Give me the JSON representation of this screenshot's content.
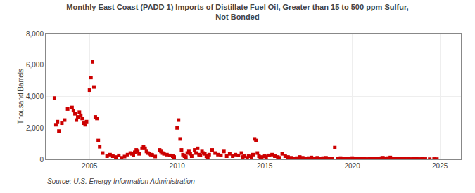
{
  "chart_data": {
    "type": "scatter",
    "title": "Monthly East Coast (PADD 1) Imports of Distillate Fuel Oil, Greater than 15 to 500 ppm Sulfur,\nNot Bonded",
    "ylabel": "Thousand Barrels",
    "annotations": [
      "Source: U.S. Energy Information Administration"
    ],
    "color": "#cc0000",
    "marker": "square",
    "grid": true,
    "xlim": [
      2002.5,
      2026.2
    ],
    "xticks": [
      2005,
      2010,
      2015,
      2020,
      2025
    ],
    "ylim": [
      0,
      8000
    ],
    "yticks": [
      0,
      {
        "value": 2000,
        "label": "2,000"
      },
      {
        "value": 4000,
        "label": "4,000"
      },
      {
        "value": 6000,
        "label": "6,000"
      },
      {
        "value": 8000,
        "label": "8,000"
      }
    ],
    "x": [
      2003.0,
      2003.08,
      2003.17,
      2003.25,
      2003.42,
      2003.58,
      2003.75,
      2004.0,
      2004.08,
      2004.17,
      2004.25,
      2004.33,
      2004.42,
      2004.5,
      2004.58,
      2004.67,
      2004.75,
      2004.83,
      2005.0,
      2005.08,
      2005.17,
      2005.25,
      2005.33,
      2005.42,
      2005.5,
      2005.58,
      2005.75,
      2006.0,
      2006.17,
      2006.33,
      2006.5,
      2006.67,
      2006.83,
      2007.0,
      2007.17,
      2007.33,
      2007.42,
      2007.5,
      2007.58,
      2007.67,
      2007.75,
      2007.83,
      2008.0,
      2008.08,
      2008.17,
      2008.25,
      2008.33,
      2008.42,
      2008.5,
      2008.58,
      2008.75,
      2009.0,
      2009.08,
      2009.17,
      2009.25,
      2009.42,
      2009.58,
      2009.75,
      2009.83,
      2010.0,
      2010.08,
      2010.17,
      2010.25,
      2010.33,
      2010.42,
      2010.5,
      2010.58,
      2010.67,
      2010.75,
      2010.83,
      2011.0,
      2011.08,
      2011.17,
      2011.25,
      2011.33,
      2011.42,
      2011.5,
      2011.58,
      2011.67,
      2011.75,
      2011.83,
      2012.0,
      2012.17,
      2012.33,
      2012.5,
      2012.67,
      2012.83,
      2013.0,
      2013.17,
      2013.33,
      2013.5,
      2013.67,
      2013.75,
      2013.83,
      2014.0,
      2014.08,
      2014.25,
      2014.33,
      2014.42,
      2014.5,
      2014.58,
      2014.67,
      2014.75,
      2014.83,
      2015.0,
      2015.08,
      2015.25,
      2015.42,
      2015.58,
      2015.75,
      2015.83,
      2016.0,
      2016.17,
      2016.33,
      2016.5,
      2016.67,
      2016.83,
      2017.0,
      2017.17,
      2017.33,
      2017.5,
      2017.67,
      2017.83,
      2018.0,
      2018.17,
      2018.33,
      2018.5,
      2018.67,
      2018.83,
      2019.0,
      2019.17,
      2019.33,
      2019.5,
      2019.67,
      2019.83,
      2020.0,
      2020.17,
      2020.33,
      2020.5,
      2020.67,
      2020.83,
      2021.0,
      2021.17,
      2021.33,
      2021.5,
      2021.67,
      2021.75,
      2021.83,
      2022.0,
      2022.17,
      2022.33,
      2022.5,
      2022.67,
      2022.83,
      2023.0,
      2023.17,
      2023.33,
      2023.5,
      2023.67,
      2023.83,
      2024.0,
      2024.17,
      2024.42,
      2024.67,
      2024.83
    ],
    "values": [
      3900,
      2200,
      2400,
      1800,
      2300,
      2500,
      3200,
      3300,
      3100,
      2900,
      2500,
      2700,
      3000,
      2800,
      2600,
      2300,
      2200,
      2400,
      4400,
      5200,
      6200,
      4600,
      2700,
      2600,
      1200,
      800,
      400,
      200,
      300,
      200,
      150,
      250,
      100,
      180,
      300,
      400,
      350,
      280,
      450,
      600,
      500,
      350,
      700,
      800,
      700,
      500,
      400,
      350,
      300,
      280,
      180,
      600,
      500,
      400,
      350,
      300,
      250,
      200,
      150,
      2000,
      2500,
      1300,
      600,
      300,
      200,
      150,
      400,
      500,
      350,
      200,
      600,
      400,
      700,
      300,
      250,
      500,
      400,
      350,
      200,
      150,
      300,
      600,
      400,
      300,
      250,
      500,
      200,
      350,
      200,
      300,
      250,
      400,
      150,
      200,
      100,
      200,
      150,
      300,
      1300,
      1200,
      400,
      200,
      100,
      150,
      200,
      150,
      250,
      300,
      200,
      150,
      100,
      350,
      200,
      150,
      100,
      50,
      80,
      150,
      100,
      50,
      80,
      120,
      60,
      100,
      50,
      80,
      100,
      60,
      40,
      750,
      50,
      80,
      60,
      40,
      30,
      80,
      50,
      30,
      60,
      40,
      20,
      30,
      50,
      40,
      60,
      80,
      100,
      70,
      80,
      120,
      50,
      30,
      40,
      60,
      50,
      30,
      20,
      30,
      40,
      20,
      30,
      20,
      10,
      20,
      15
    ]
  }
}
